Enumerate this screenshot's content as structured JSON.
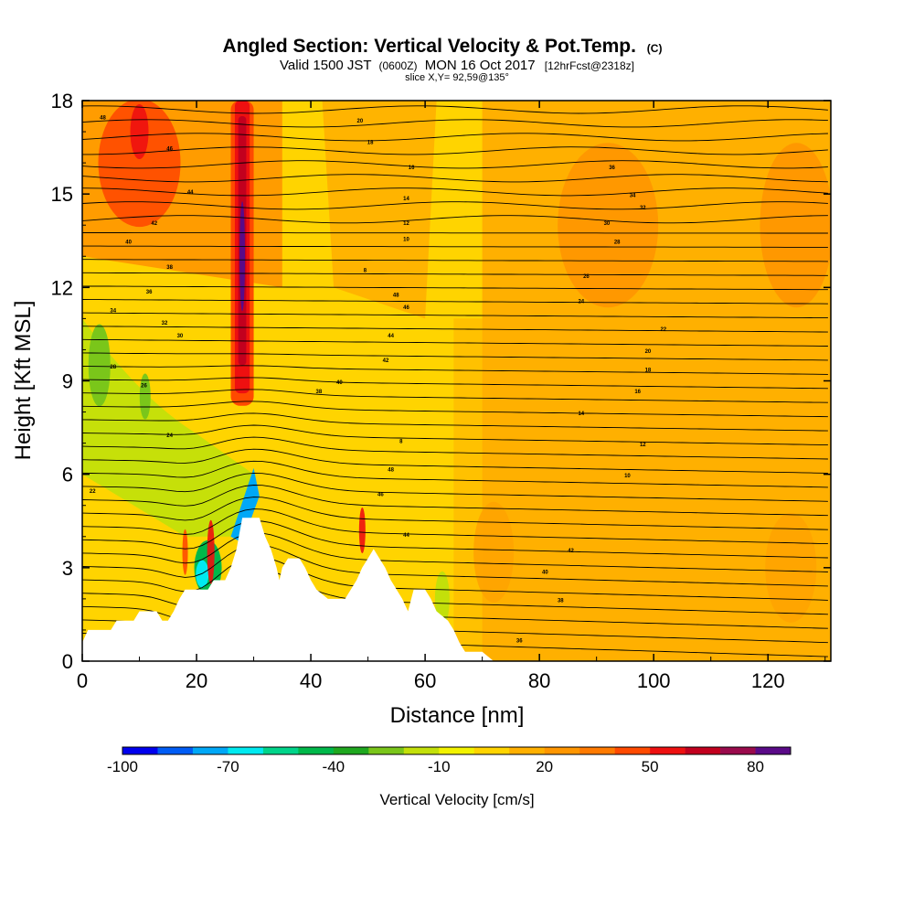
{
  "chart_data": {
    "type": "heatmap",
    "title": "Angled Section: Vertical Velocity & Pot.Temp.",
    "title_unit": "(C)",
    "subtitle": {
      "valid_prefix": "Valid 1500 JST",
      "utc": "(0600Z)",
      "date": "MON 16 Oct 2017",
      "forecast": "[12hrFcst@2318z]"
    },
    "slice_label": "slice X,Y= 92,59@135°",
    "xlabel": "Distance [nm]",
    "ylabel": "Height [Kft MSL]",
    "xlim": [
      0,
      131
    ],
    "ylim": [
      0,
      18
    ],
    "x_ticks": [
      "0",
      "20",
      "40",
      "60",
      "80",
      "100",
      "120"
    ],
    "y_ticks": [
      "0",
      "3",
      "6",
      "9",
      "12",
      "15",
      "18"
    ],
    "colorbar": {
      "label": "Vertical Velocity [cm/s]",
      "tick_labels": [
        "-100",
        "-70",
        "-40",
        "-10",
        "20",
        "50",
        "80"
      ],
      "bins": [
        -100,
        -90,
        -80,
        -70,
        -60,
        -50,
        -40,
        -30,
        -20,
        -10,
        0,
        10,
        20,
        30,
        40,
        50,
        60,
        70,
        80
      ],
      "colors": [
        "#0000ee",
        "#005cf5",
        "#00a8f7",
        "#00eaf0",
        "#00d48a",
        "#00b84a",
        "#1fa81f",
        "#7ac61a",
        "#c3e00a",
        "#f2f200",
        "#ffd400",
        "#ffb000",
        "#ff9600",
        "#ff7a00",
        "#ff4a00",
        "#ee1010",
        "#c2001e",
        "#9a0a4c",
        "#5a0a88"
      ]
    },
    "terrain_nm_kft": [
      [
        0,
        0.6
      ],
      [
        1,
        1.0
      ],
      [
        5,
        1.0
      ],
      [
        6,
        1.3
      ],
      [
        9,
        1.3
      ],
      [
        10,
        1.6
      ],
      [
        13,
        1.6
      ],
      [
        14,
        1.3
      ],
      [
        15,
        1.3
      ],
      [
        16,
        1.6
      ],
      [
        17,
        2.0
      ],
      [
        18,
        2.3
      ],
      [
        22,
        2.3
      ],
      [
        23,
        2.6
      ],
      [
        25,
        2.6
      ],
      [
        26,
        3.0
      ],
      [
        27,
        3.6
      ],
      [
        28,
        4.6
      ],
      [
        31,
        4.6
      ],
      [
        32,
        4.0
      ],
      [
        33,
        3.6
      ],
      [
        34,
        3.0
      ],
      [
        34.5,
        2.6
      ],
      [
        35,
        3.0
      ],
      [
        36,
        3.3
      ],
      [
        38,
        3.3
      ],
      [
        39,
        3.0
      ],
      [
        40,
        2.6
      ],
      [
        41,
        2.3
      ],
      [
        43,
        2.0
      ],
      [
        46,
        2.0
      ],
      [
        47,
        2.3
      ],
      [
        48,
        2.6
      ],
      [
        49,
        3.0
      ],
      [
        50,
        3.3
      ],
      [
        51,
        3.6
      ],
      [
        52,
        3.3
      ],
      [
        53,
        3.0
      ],
      [
        54,
        2.6
      ],
      [
        55,
        2.3
      ],
      [
        56,
        2.0
      ],
      [
        57,
        1.6
      ],
      [
        58,
        2.3
      ],
      [
        60,
        2.3
      ],
      [
        61,
        2.0
      ],
      [
        62,
        1.6
      ],
      [
        64,
        1.3
      ],
      [
        65,
        1.0
      ],
      [
        66,
        0.6
      ],
      [
        67,
        0.3
      ],
      [
        70,
        0.3
      ],
      [
        72,
        0.0
      ]
    ],
    "theta_contours_c": [
      "48",
      "46",
      "44",
      "42",
      "40",
      "38",
      "36",
      "34",
      "32",
      "30",
      "28",
      "26",
      "24",
      "22",
      "20",
      "18",
      "16",
      "14",
      "12",
      "10",
      "8"
    ],
    "contour_label_values": [
      "48",
      "46",
      "44",
      "42",
      "40",
      "38",
      "36",
      "34",
      "32",
      "30",
      "28",
      "26",
      "24",
      "22",
      "20",
      "18",
      "16",
      "14",
      "12",
      "10",
      "8"
    ]
  }
}
